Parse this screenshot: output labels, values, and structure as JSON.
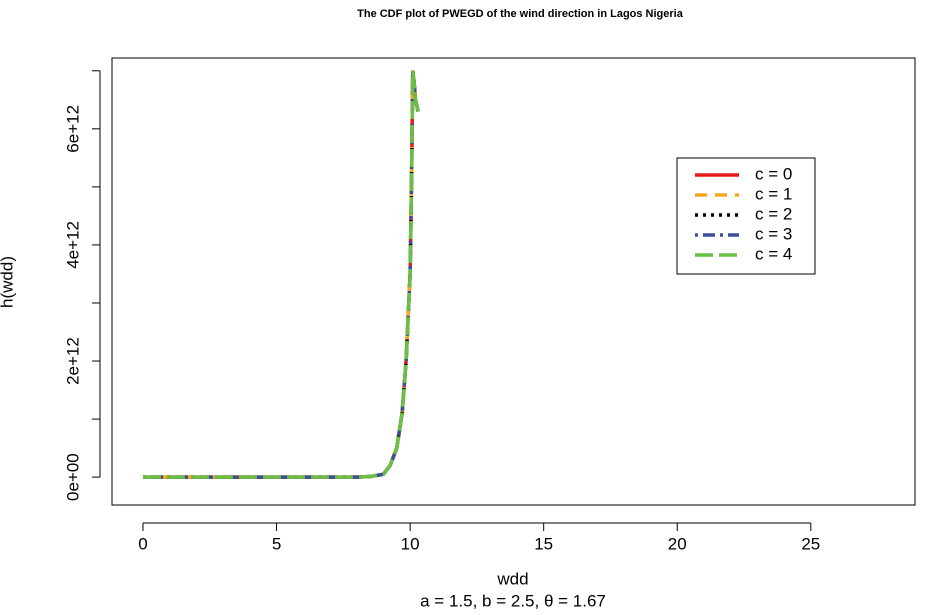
{
  "chart_data": {
    "type": "line",
    "title": "The CDF plot of PWEGD of the wind direction in Lagos Nigeria",
    "x_label": "wdd",
    "subtitle": "a = 1.5, b = 2.5, θ = 1.67",
    "y_label": "h(wdd)",
    "x": [
      0,
      1,
      2,
      3,
      4,
      5,
      6,
      7,
      8,
      8.5,
      9,
      9.25,
      9.5,
      9.7,
      9.85,
      10,
      10.05,
      10.1,
      10.15,
      10.2,
      10.3
    ],
    "series": [
      {
        "name": "c = 0",
        "color": "#e41a1c",
        "line_style": "solid",
        "values": [
          0,
          0,
          0,
          0,
          0,
          0,
          0,
          0,
          0,
          10000000000,
          50000000000,
          200000000000,
          500000000000,
          1100000000000,
          2000000000000,
          3500000000000,
          5000000000000,
          7000000000000,
          6800000000000,
          6500000000000,
          6300000000000
        ]
      },
      {
        "name": "c = 1",
        "color": "#f5a623",
        "line_style": "dashed",
        "values": [
          0,
          0,
          0,
          0,
          0,
          0,
          0,
          0,
          0,
          10000000000,
          50000000000,
          200000000000,
          500000000000,
          1100000000000,
          2000000000000,
          3500000000000,
          5000000000000,
          7000000000000,
          6800000000000,
          6500000000000,
          6300000000000
        ]
      },
      {
        "name": "c = 2",
        "color": "#000000",
        "line_style": "dotted",
        "values": [
          0,
          0,
          0,
          0,
          0,
          0,
          0,
          0,
          0,
          10000000000,
          50000000000,
          200000000000,
          500000000000,
          1100000000000,
          2000000000000,
          3500000000000,
          5000000000000,
          7000000000000,
          6800000000000,
          6500000000000,
          6300000000000
        ]
      },
      {
        "name": "c = 3",
        "color": "#3a4f9a",
        "line_style": "dotdash",
        "values": [
          0,
          0,
          0,
          0,
          0,
          0,
          0,
          0,
          0,
          10000000000,
          50000000000,
          200000000000,
          500000000000,
          1100000000000,
          2000000000000,
          3500000000000,
          5000000000000,
          7000000000000,
          6800000000000,
          6500000000000,
          6300000000000
        ]
      },
      {
        "name": "c = 4",
        "color": "#6abf45",
        "line_style": "longdash",
        "values": [
          0,
          0,
          0,
          0,
          0,
          0,
          0,
          0,
          0,
          10000000000,
          50000000000,
          200000000000,
          500000000000,
          1100000000000,
          2000000000000,
          3500000000000,
          5000000000000,
          7000000000000,
          6800000000000,
          6500000000000,
          6300000000000
        ]
      }
    ],
    "xlim": [
      -1.16,
      28.9
    ],
    "xticks": [
      0,
      5,
      10,
      15,
      20,
      25
    ],
    "ylim": [
      -480000000000,
      7220000000000
    ],
    "yticks": [
      {
        "value": 0,
        "label": "0e+00"
      },
      {
        "value": 2000000000000,
        "label": "2e+12"
      },
      {
        "value": 4000000000000,
        "label": "4e+12"
      },
      {
        "value": 6000000000000,
        "label": "6e+12"
      }
    ],
    "yminor_ticks": [
      1000000000000,
      3000000000000,
      5000000000000,
      7000000000000
    ],
    "legend": "upper right"
  }
}
